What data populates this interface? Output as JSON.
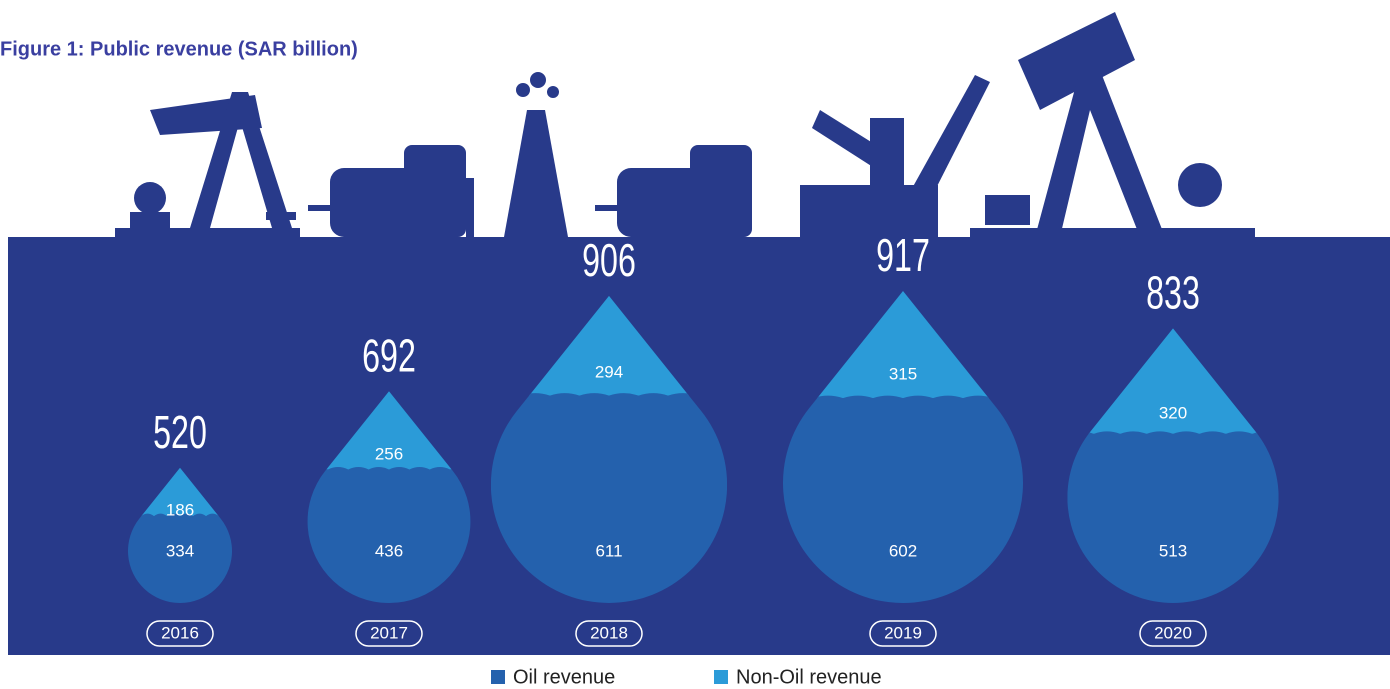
{
  "chart_data": {
    "type": "drop",
    "title": "Figure 1: Public revenue (SAR billion)",
    "categories": [
      "2016",
      "2017",
      "2018",
      "2019",
      "2020"
    ],
    "totals": [
      520,
      692,
      906,
      917,
      833
    ],
    "series": [
      {
        "name": "Oil revenue",
        "color": "#2461ad",
        "values": [
          334,
          436,
          611,
          602,
          513
        ]
      },
      {
        "name": "Non-Oil revenue",
        "color": "#2b9bd8",
        "values": [
          186,
          256,
          294,
          315,
          320
        ]
      }
    ]
  }
}
